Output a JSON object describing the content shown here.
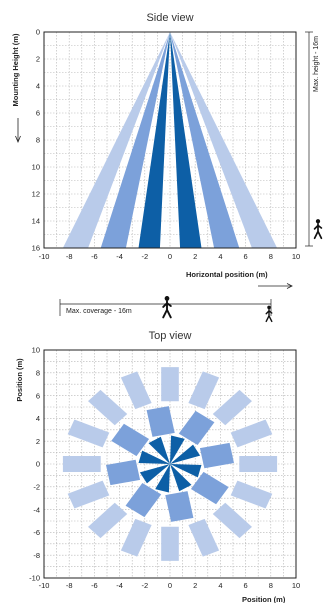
{
  "side_view": {
    "title": "Side view",
    "ylabel": "Mounting Height (m)",
    "xlabel": "Horizontal position (m)",
    "x_ticks": [
      "-10",
      "-8",
      "-6",
      "-4",
      "-2",
      "0",
      "2",
      "4",
      "6",
      "8",
      "10"
    ],
    "y_ticks": [
      "0",
      "2",
      "4",
      "6",
      "8",
      "10",
      "12",
      "14",
      "16"
    ],
    "max_height_note": "Max. height - 16m",
    "max_coverage_note": "Max. coverage - 16m"
  },
  "top_view": {
    "title": "Top view",
    "ylabel": "Position (m)",
    "xlabel": "Position (m)",
    "x_ticks": [
      "-10",
      "-8",
      "-6",
      "-4",
      "-2",
      "0",
      "2",
      "4",
      "6",
      "8",
      "10"
    ],
    "y_ticks": [
      "10",
      "8",
      "6",
      "4",
      "2",
      "0",
      "-2",
      "-4",
      "-6",
      "-8",
      "-10"
    ]
  },
  "colors": {
    "light": "#b9cbea",
    "medium": "#7ca1da",
    "dark": "#0d5fa6",
    "frame": "#222222",
    "grid": "#b5b5b5"
  },
  "icons": [
    "walking-person-icon",
    "walking-person-icon",
    "walking-person-icon"
  ],
  "chart_data": [
    {
      "type": "area",
      "title": "Side view",
      "xlabel": "Horizontal position (m)",
      "ylabel": "Mounting Height (m)",
      "xlim": [
        -10,
        10
      ],
      "ylim": [
        0,
        16
      ],
      "y_inverted": true,
      "grid": true,
      "apex": [
        0,
        0
      ],
      "series": [
        {
          "name": "",
          "color_role": "light",
          "values": [
            [
              -8.5,
              16
            ],
            [
              -6.5,
              16
            ],
            [
              6.5,
              16
            ],
            [
              8.5,
              16
            ]
          ]
        },
        {
          "name": "",
          "color_role": "medium",
          "values": [
            [
              -5.5,
              16
            ],
            [
              -3.5,
              16
            ],
            [
              3.5,
              16
            ],
            [
              5.5,
              16
            ]
          ]
        },
        {
          "name": "",
          "color_role": "dark",
          "values": [
            [
              -2.5,
              16
            ],
            [
              -0.8,
              16
            ],
            [
              0.8,
              16
            ],
            [
              2.5,
              16
            ]
          ]
        }
      ]
    },
    {
      "type": "scatter",
      "title": "Top view",
      "xlabel": "Position (m)",
      "ylabel": "Position (m)",
      "xlim": [
        -10,
        10
      ],
      "ylim": [
        -10,
        10
      ],
      "grid": true,
      "series": [
        {
          "name": "",
          "color_role": "light",
          "count": 16,
          "start_angle_deg": 0,
          "inner_r": 5.5,
          "outer_r": 8.5,
          "half_width": 0.7
        },
        {
          "name": "",
          "color_role": "medium",
          "count": 8,
          "start_angle_deg": 11.25,
          "inner_r": 2.6,
          "outer_r": 5.0,
          "half_width": 0.9
        },
        {
          "name": "",
          "color_role": "dark",
          "count": 8,
          "start_angle_deg": 30,
          "inner_r": 0,
          "outer_r": 2.5,
          "half_angle_deg": 13
        }
      ]
    }
  ]
}
